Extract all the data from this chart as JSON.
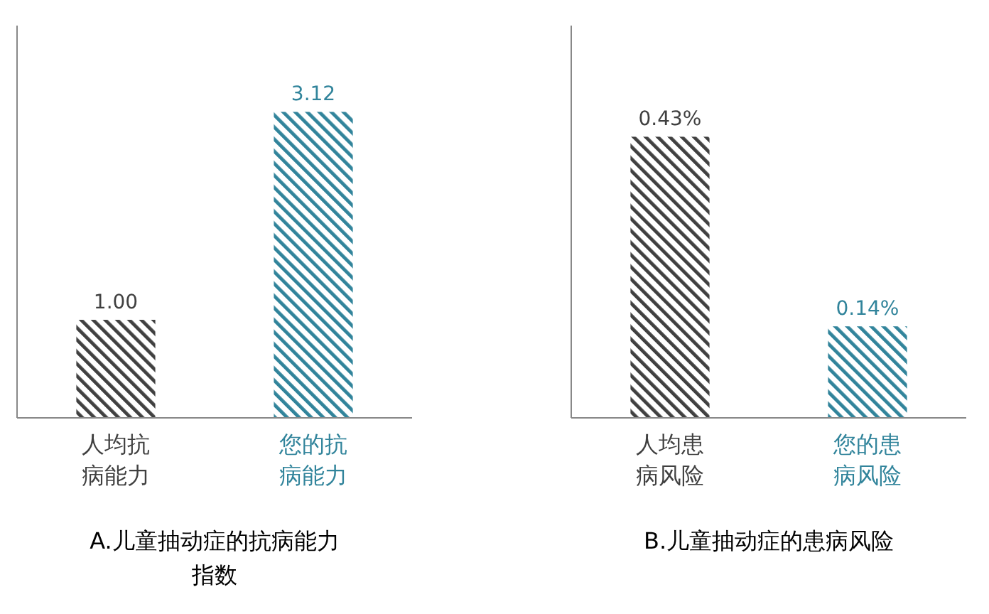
{
  "chart_data": [
    {
      "type": "bar",
      "title": "A.儿童抽动症的抗病能力指数",
      "categories": [
        "人均抗病能力",
        "您的抗病能力"
      ],
      "values": [
        1.0,
        3.12
      ],
      "colors": [
        "#404040",
        "#31849b"
      ],
      "value_labels": [
        "1.00",
        "3.12"
      ],
      "ylim": [
        0,
        4
      ],
      "tick_labels": "x"
    },
    {
      "type": "bar",
      "title": "B.儿童抽动症的患病风险",
      "categories": [
        "人均患病风险",
        "您的患病风险"
      ],
      "values": [
        0.43,
        0.14
      ],
      "colors": [
        "#404040",
        "#31849b"
      ],
      "value_labels": [
        "0.43%",
        "0.14%"
      ],
      "ylim": [
        0,
        0.6
      ],
      "tick_labels": "x"
    }
  ]
}
